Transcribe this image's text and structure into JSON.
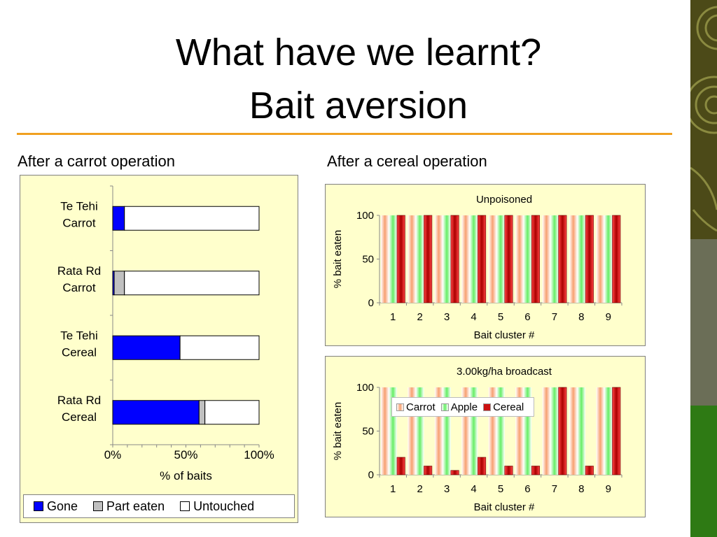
{
  "slide": {
    "title_line1": "What have we learnt?",
    "title_line2": "Bait aversion",
    "left_label": "After a carrot operation",
    "right_label": "After a cereal operation"
  },
  "colors": {
    "accent_rule": "#f0a020",
    "panel_bg": "#ffffcc",
    "gone": "#0000ff",
    "part_eaten": "#c0c0c0",
    "untouched": "#ffffff",
    "carrot": "#f7a070",
    "apple": "#66ee66",
    "cereal": "#cc1111"
  },
  "chart_data": [
    {
      "type": "bar",
      "orientation": "horizontal",
      "stacked": true,
      "categories": [
        "Te Tehi\nCarrot",
        "Rata Rd\nCarrot",
        "Te Tehi\nCereal",
        "Rata Rd\nCereal"
      ],
      "series": [
        {
          "name": "Gone",
          "values": [
            8,
            1,
            46,
            59
          ]
        },
        {
          "name": "Part eaten",
          "values": [
            0,
            7,
            0,
            4
          ]
        },
        {
          "name": "Untouched",
          "values": [
            92,
            92,
            54,
            37
          ]
        }
      ],
      "xlabel": "% of baits",
      "xlim": [
        0,
        100
      ],
      "xticks": [
        "0%",
        "50%",
        "100%"
      ],
      "legend": "bottom"
    },
    {
      "type": "bar",
      "title": "Unpoisoned",
      "categories": [
        "1",
        "2",
        "3",
        "4",
        "5",
        "6",
        "7",
        "8",
        "9"
      ],
      "series": [
        {
          "name": "Carrot",
          "values": [
            100,
            100,
            100,
            100,
            100,
            100,
            100,
            100,
            100
          ]
        },
        {
          "name": "Apple",
          "values": [
            100,
            100,
            100,
            100,
            100,
            100,
            100,
            100,
            100
          ]
        },
        {
          "name": "Cereal",
          "values": [
            100,
            100,
            100,
            100,
            100,
            100,
            100,
            100,
            100
          ]
        }
      ],
      "xlabel": "Bait cluster #",
      "ylabel": "% bait eaten",
      "ylim": [
        0,
        100
      ],
      "yticks": [
        "0",
        "50",
        "100"
      ]
    },
    {
      "type": "bar",
      "title": "3.00kg/ha broadcast",
      "categories": [
        "1",
        "2",
        "3",
        "4",
        "5",
        "6",
        "7",
        "8",
        "9"
      ],
      "series": [
        {
          "name": "Carrot",
          "values": [
            100,
            100,
            100,
            100,
            100,
            100,
            100,
            100,
            100
          ]
        },
        {
          "name": "Apple",
          "values": [
            100,
            100,
            100,
            100,
            100,
            100,
            100,
            100,
            100
          ]
        },
        {
          "name": "Cereal",
          "values": [
            20,
            10,
            5,
            20,
            10,
            10,
            100,
            10,
            100
          ]
        }
      ],
      "xlabel": "Bait cluster #",
      "ylabel": "% bait eaten",
      "ylim": [
        0,
        100
      ],
      "yticks": [
        "0",
        "50",
        "100"
      ],
      "legend": "top-left"
    }
  ]
}
